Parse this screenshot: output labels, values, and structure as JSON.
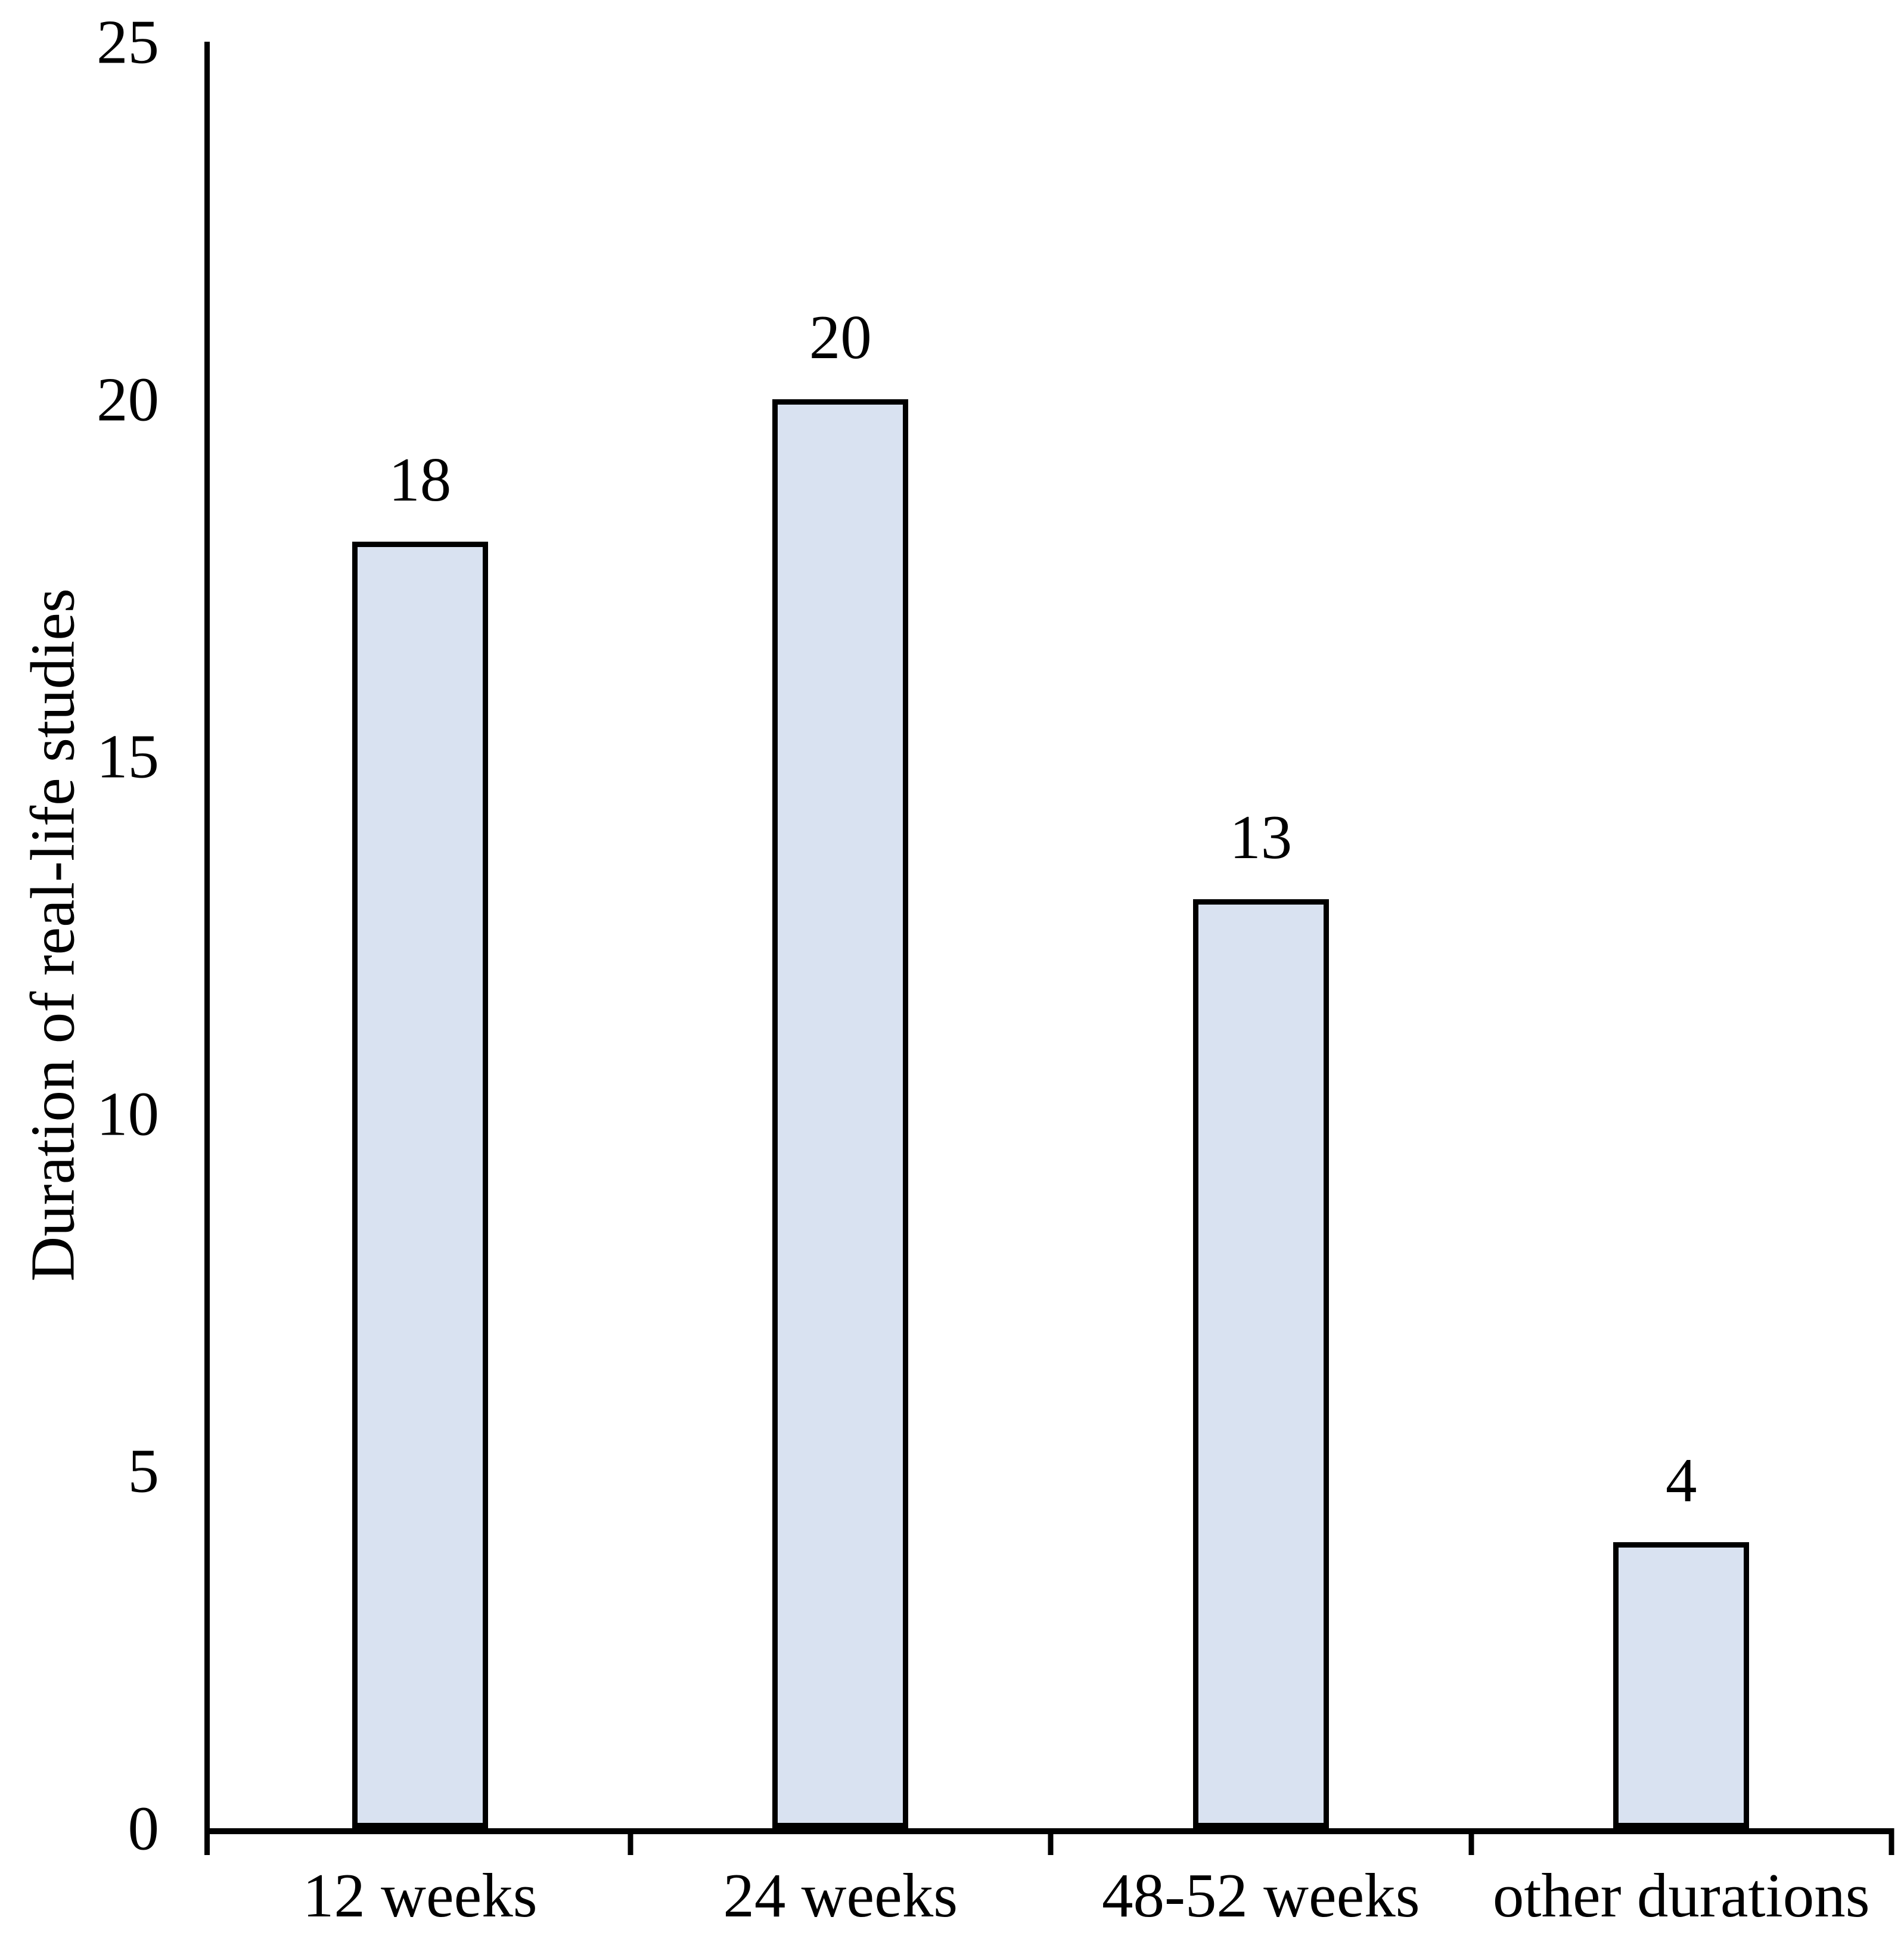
{
  "chart_data": {
    "type": "bar",
    "title": "",
    "ylabel": "Duration of real-life studies",
    "xlabel": "",
    "categories": [
      "12 weeks",
      "24 weeks",
      "48-52 weeks",
      "other durations"
    ],
    "values": [
      18,
      20,
      13,
      4
    ],
    "data_labels": [
      "18",
      "20",
      "13",
      "4"
    ],
    "ylim": [
      0,
      25
    ],
    "yticks": [
      0,
      5,
      10,
      15,
      20,
      25
    ],
    "grid": "off",
    "legend": "none",
    "colors": {
      "bar_fill": "#d9e2f1",
      "bar_border": "#000000",
      "axis": "#000000",
      "text": "#000000",
      "background": "#ffffff"
    }
  }
}
